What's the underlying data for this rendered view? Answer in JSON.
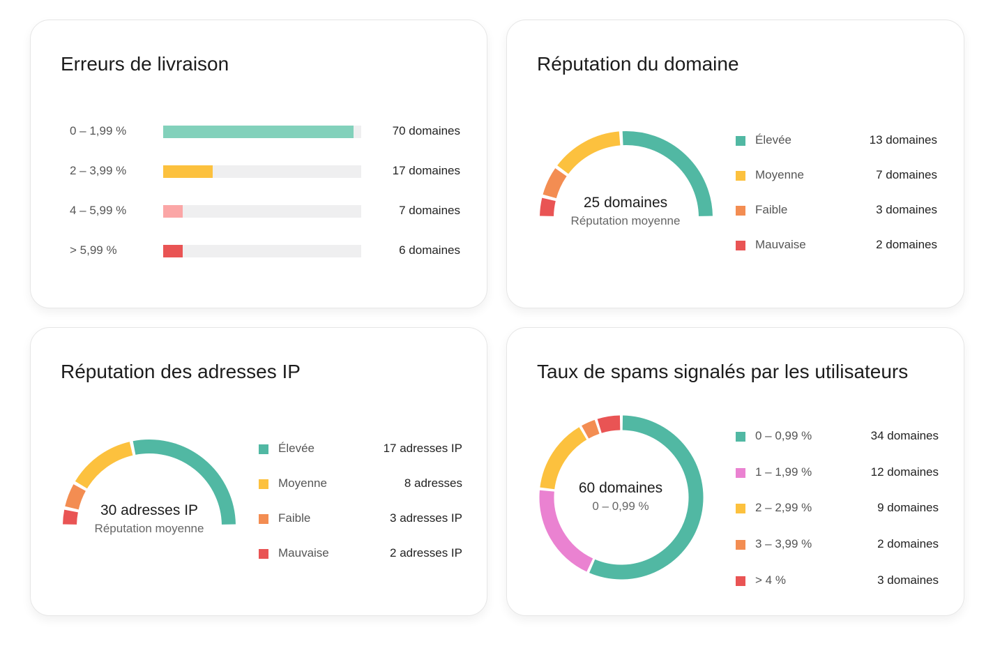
{
  "colors": {
    "teal": "#51b8a3",
    "teal_light": "#82d1bb",
    "yellow": "#fcc13e",
    "orange": "#f38d52",
    "pink_light": "#fba6a6",
    "red": "#e95454",
    "magenta": "#ea82d1",
    "track": "#efeff0"
  },
  "delivery_errors": {
    "title": "Erreurs de livraison",
    "rows": [
      {
        "label": "0 – 1,99 %",
        "value": "70 domaines",
        "count": 70,
        "fill_fraction": 0.96,
        "color": "#82d1bb"
      },
      {
        "label": "2 – 3,99 %",
        "value": "17 domaines",
        "count": 17,
        "fill_fraction": 0.25,
        "color": "#fcc13e"
      },
      {
        "label": "4 – 5,99 %",
        "value": "7 domaines",
        "count": 7,
        "fill_fraction": 0.1,
        "color": "#fba6a6"
      },
      {
        "label": "> 5,99 %",
        "value": "6 domaines",
        "count": 6,
        "fill_fraction": 0.1,
        "color": "#e95454"
      }
    ]
  },
  "domain_reputation": {
    "title": "Réputation du domaine",
    "center_main": "25 domaines",
    "center_sub": "Réputation moyenne",
    "legend": [
      {
        "label": "Élevée",
        "value": "13 domaines",
        "count": 13,
        "color": "#51b8a3"
      },
      {
        "label": "Moyenne",
        "value": "7 domaines",
        "count": 7,
        "color": "#fcc13e"
      },
      {
        "label": "Faible",
        "value": "3 domaines",
        "count": 3,
        "color": "#f38d52"
      },
      {
        "label": "Mauvaise",
        "value": "2 domaines",
        "count": 2,
        "color": "#e95454"
      }
    ]
  },
  "ip_reputation": {
    "title": "Réputation des adresses IP",
    "center_main": "30 adresses IP",
    "center_sub": "Réputation moyenne",
    "legend": [
      {
        "label": "Élevée",
        "value": "17 adresses IP",
        "count": 17,
        "color": "#51b8a3"
      },
      {
        "label": "Moyenne",
        "value": "8 adresses",
        "count": 8,
        "color": "#fcc13e"
      },
      {
        "label": "Faible",
        "value": "3 adresses IP",
        "count": 3,
        "color": "#f38d52"
      },
      {
        "label": "Mauvaise",
        "value": "2 adresses IP",
        "count": 2,
        "color": "#e95454"
      }
    ]
  },
  "spam_rate": {
    "title": "Taux de spams signalés par les utilisateurs",
    "center_main": "60 domaines",
    "center_sub": "0 – 0,99 %",
    "legend": [
      {
        "label": "0 – 0,99 %",
        "value": "34 domaines",
        "count": 34,
        "color": "#51b8a3"
      },
      {
        "label": "1 – 1,99 %",
        "value": "12 domaines",
        "count": 12,
        "color": "#ea82d1"
      },
      {
        "label": "2 – 2,99 %",
        "value": "9 domaines",
        "count": 9,
        "color": "#fcc13e"
      },
      {
        "label": "3 – 3,99 %",
        "value": "2 domaines",
        "count": 2,
        "color": "#f38d52"
      },
      {
        "label": "> 4 %",
        "value": "3 domaines",
        "count": 3,
        "color": "#e95454"
      }
    ]
  }
}
